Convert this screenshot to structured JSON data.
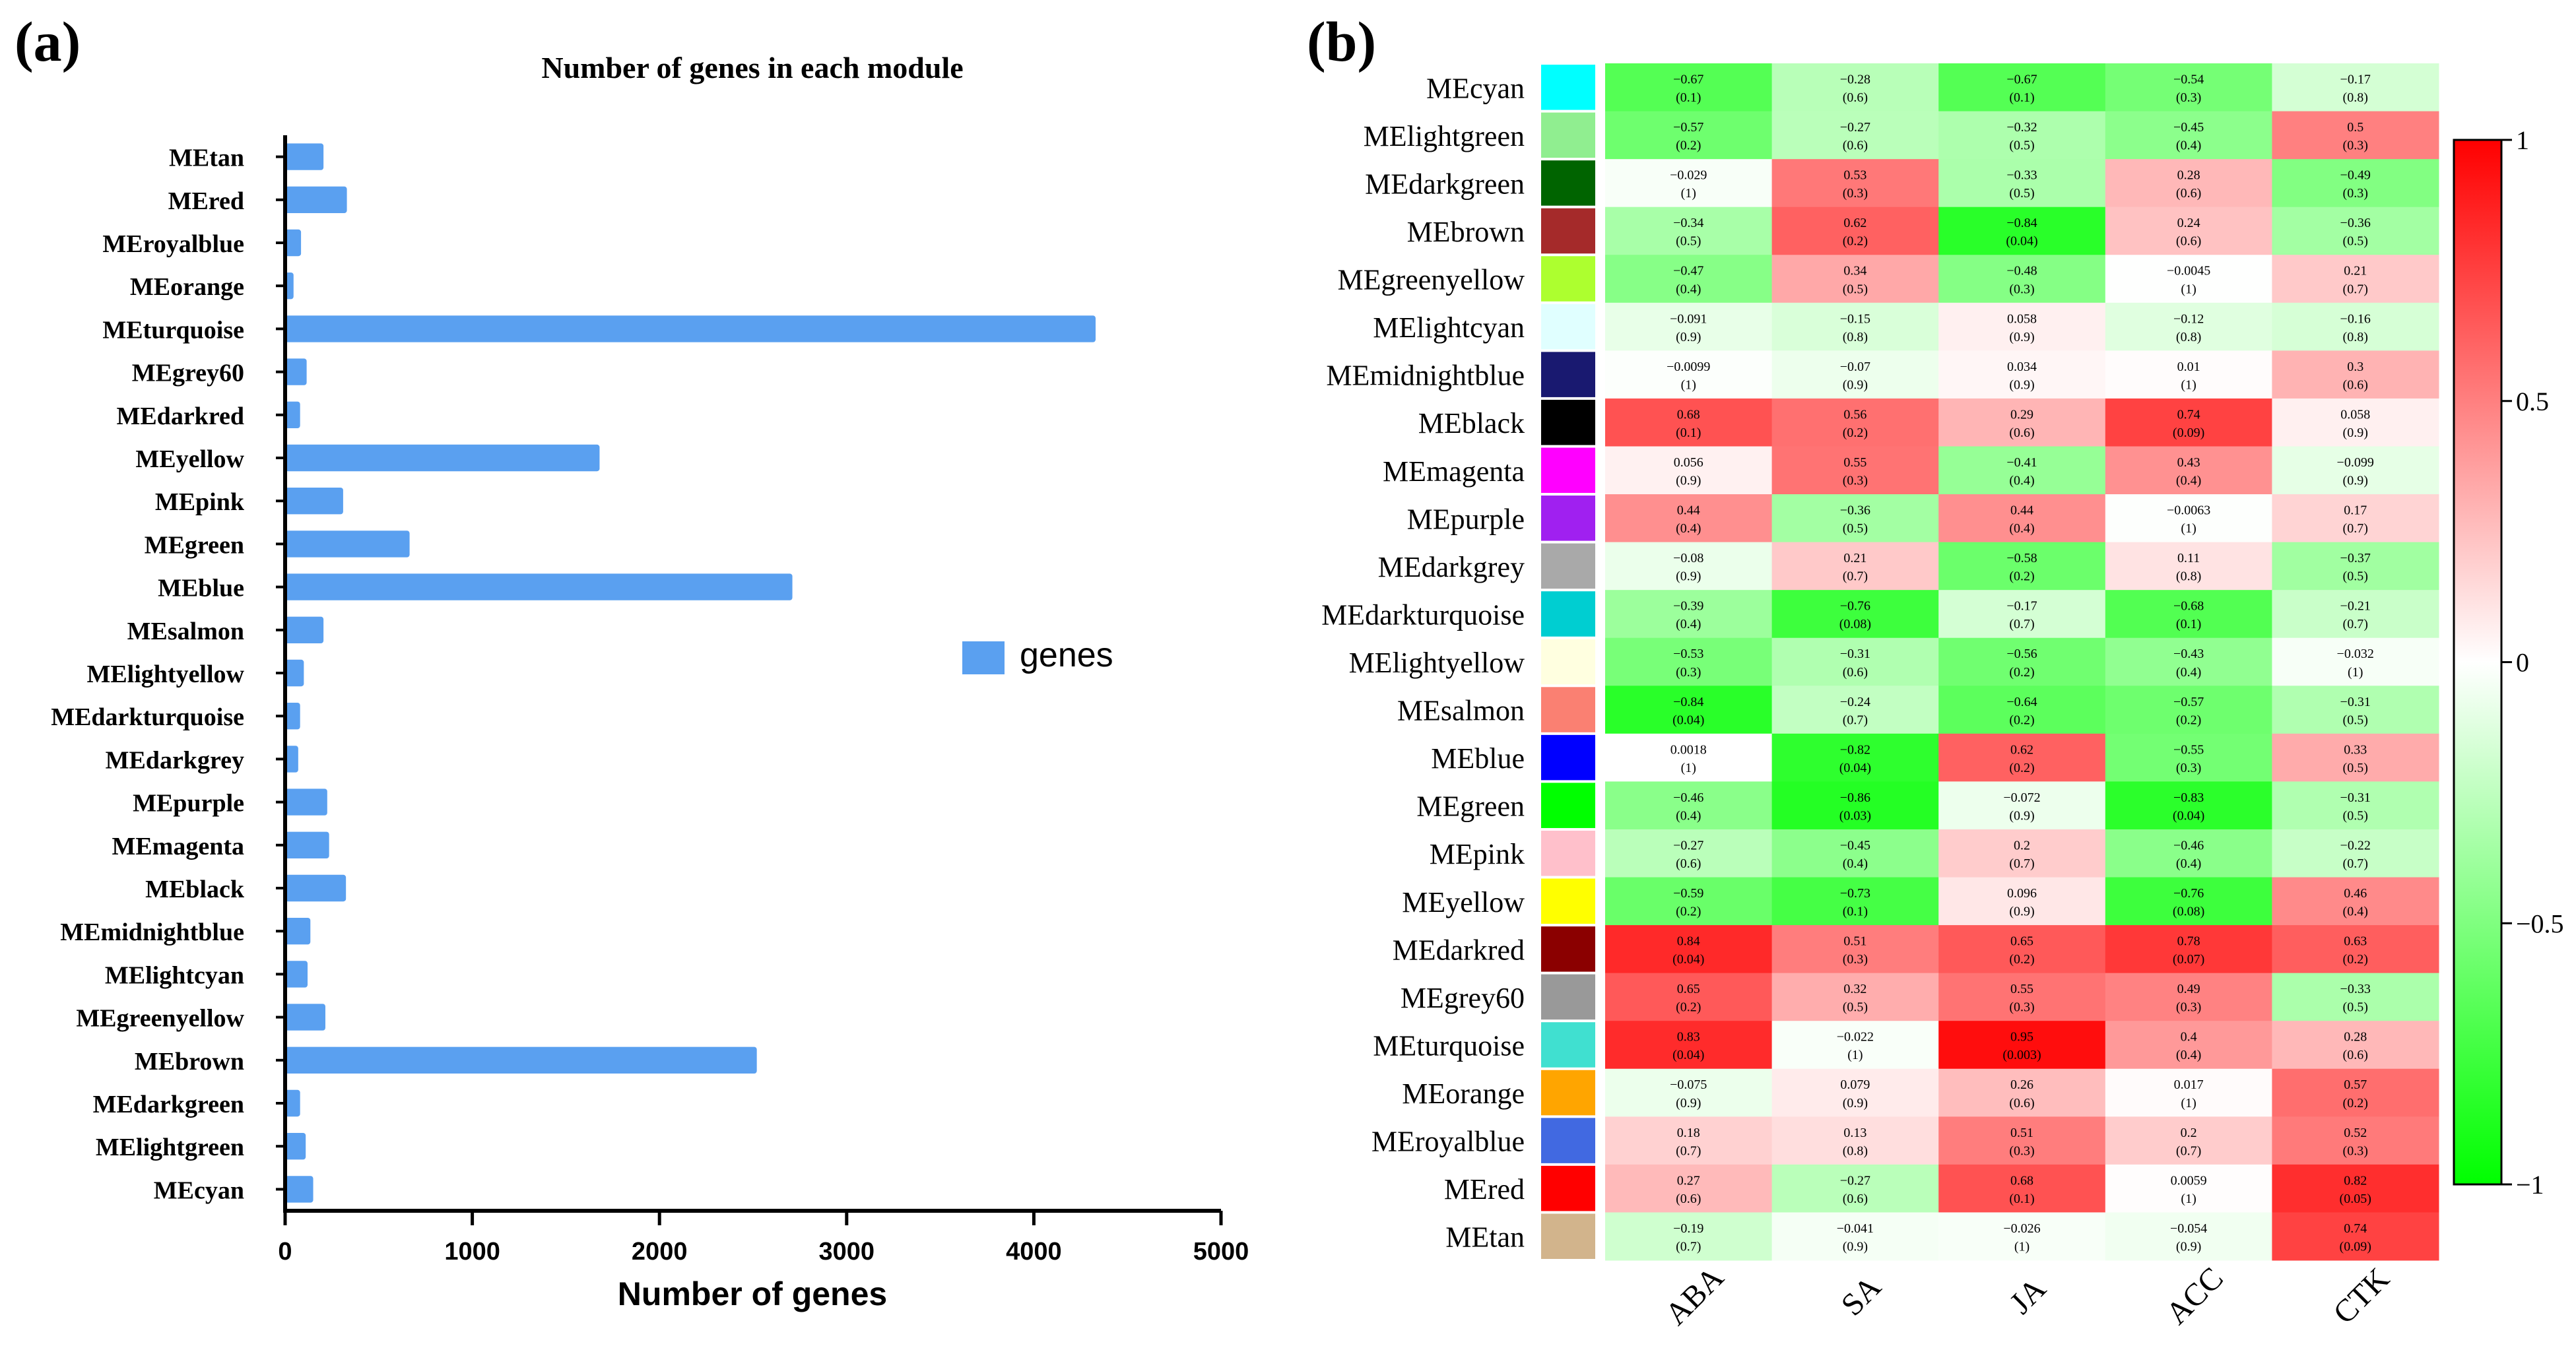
{
  "panel_a_letter": "(a)",
  "panel_b_letter": "(b)",
  "chart_data": [
    {
      "type": "bar",
      "orientation": "horizontal",
      "title": "Number of genes in each module",
      "xlabel": "Number of genes",
      "ylabel": "",
      "xlim": [
        0,
        5000
      ],
      "xticks": [
        0,
        1000,
        2000,
        3000,
        4000,
        5000
      ],
      "legend": {
        "label": "genes",
        "position": "right"
      },
      "bar_color": "#5aa0f0",
      "categories": [
        "MEtan",
        "MEred",
        "MEroyalblue",
        "MEorange",
        "MEturquoise",
        "MEgrey60",
        "MEdarkred",
        "MEyellow",
        "MEpink",
        "MEgreen",
        "MEblue",
        "MEsalmon",
        "MElightyellow",
        "MEdarkturquoise",
        "MEdarkgrey",
        "MEpurple",
        "MEmagenta",
        "MEblack",
        "MEmidnightblue",
        "MElightcyan",
        "MEgreenyellow",
        "MEbrown",
        "MEdarkgreen",
        "MElightgreen",
        "MEcyan"
      ],
      "values": [
        205,
        330,
        85,
        45,
        4330,
        115,
        80,
        1680,
        310,
        665,
        2710,
        205,
        100,
        80,
        70,
        225,
        235,
        325,
        135,
        120,
        215,
        2520,
        80,
        110,
        150
      ]
    },
    {
      "type": "heatmap",
      "columns": [
        "ABA",
        "SA",
        "JA",
        "ACC",
        "CTK"
      ],
      "rows": [
        "MEcyan",
        "MElightgreen",
        "MEdarkgreen",
        "MEbrown",
        "MEgreenyellow",
        "MElightcyan",
        "MEmidnightblue",
        "MEblack",
        "MEmagenta",
        "MEpurple",
        "MEdarkgrey",
        "MEdarkturquoise",
        "MElightyellow",
        "MEsalmon",
        "MEblue",
        "MEgreen",
        "MEpink",
        "MEyellow",
        "MEdarkred",
        "MEgrey60",
        "MEturquoise",
        "MEorange",
        "MEroyalblue",
        "MEred",
        "MEtan"
      ],
      "row_colors": [
        "#00ffff",
        "#90ee90",
        "#006400",
        "#a52a2a",
        "#adff2f",
        "#e0ffff",
        "#191970",
        "#000000",
        "#ff00ff",
        "#a020f0",
        "#a9a9a9",
        "#00ced1",
        "#ffffe0",
        "#fa8072",
        "#0000ff",
        "#00ff00",
        "#ffc0cb",
        "#ffff00",
        "#8b0000",
        "#999999",
        "#40e0d0",
        "#ffa500",
        "#4169e1",
        "#ff0000",
        "#d2b48c"
      ],
      "values": [
        [
          -0.67,
          -0.28,
          -0.67,
          -0.54,
          -0.17
        ],
        [
          -0.57,
          -0.27,
          -0.32,
          -0.45,
          0.5
        ],
        [
          -0.029,
          0.53,
          -0.33,
          0.28,
          -0.49
        ],
        [
          -0.34,
          0.62,
          -0.84,
          0.24,
          -0.36
        ],
        [
          -0.47,
          0.34,
          -0.48,
          -0.0045,
          0.21
        ],
        [
          -0.091,
          -0.15,
          0.058,
          -0.12,
          -0.16
        ],
        [
          -0.0099,
          -0.07,
          0.034,
          0.01,
          0.3
        ],
        [
          0.68,
          0.56,
          0.29,
          0.74,
          0.058
        ],
        [
          0.056,
          0.55,
          -0.41,
          0.43,
          -0.099
        ],
        [
          0.44,
          -0.36,
          0.44,
          -0.0063,
          0.17
        ],
        [
          -0.08,
          0.21,
          -0.58,
          0.11,
          -0.37
        ],
        [
          -0.39,
          -0.76,
          -0.17,
          -0.68,
          -0.21
        ],
        [
          -0.53,
          -0.31,
          -0.56,
          -0.43,
          -0.032
        ],
        [
          -0.84,
          -0.24,
          -0.64,
          -0.57,
          -0.31
        ],
        [
          0.0018,
          -0.82,
          0.62,
          -0.55,
          0.33
        ],
        [
          -0.46,
          -0.86,
          -0.072,
          -0.83,
          -0.31
        ],
        [
          -0.27,
          -0.45,
          0.2,
          -0.46,
          -0.22
        ],
        [
          -0.59,
          -0.73,
          0.096,
          -0.76,
          0.46
        ],
        [
          0.84,
          0.51,
          0.65,
          0.78,
          0.63
        ],
        [
          0.65,
          0.32,
          0.55,
          0.49,
          -0.33
        ],
        [
          0.83,
          -0.022,
          0.95,
          0.4,
          0.28
        ],
        [
          -0.075,
          0.079,
          0.26,
          0.017,
          0.57
        ],
        [
          0.18,
          0.13,
          0.51,
          0.2,
          0.52
        ],
        [
          0.27,
          -0.27,
          0.68,
          0.0059,
          0.82
        ],
        [
          -0.19,
          -0.041,
          -0.026,
          -0.054,
          0.74
        ]
      ],
      "pvalues": [
        [
          "0.1",
          "0.6",
          "0.1",
          "0.3",
          "0.8"
        ],
        [
          "0.2",
          "0.6",
          "0.5",
          "0.4",
          "0.3"
        ],
        [
          "1",
          "0.3",
          "0.5",
          "0.6",
          "0.3"
        ],
        [
          "0.5",
          "0.2",
          "0.04",
          "0.6",
          "0.5"
        ],
        [
          "0.4",
          "0.5",
          "0.3",
          "1",
          "0.7"
        ],
        [
          "0.9",
          "0.8",
          "0.9",
          "0.8",
          "0.8"
        ],
        [
          "1",
          "0.9",
          "0.9",
          "1",
          "0.6"
        ],
        [
          "0.1",
          "0.2",
          "0.6",
          "0.09",
          "0.9"
        ],
        [
          "0.9",
          "0.3",
          "0.4",
          "0.4",
          "0.9"
        ],
        [
          "0.4",
          "0.5",
          "0.4",
          "1",
          "0.7"
        ],
        [
          "0.9",
          "0.7",
          "0.2",
          "0.8",
          "0.5"
        ],
        [
          "0.4",
          "0.08",
          "0.7",
          "0.1",
          "0.7"
        ],
        [
          "0.3",
          "0.6",
          "0.2",
          "0.4",
          "1"
        ],
        [
          "0.04",
          "0.7",
          "0.2",
          "0.2",
          "0.5"
        ],
        [
          "1",
          "0.04",
          "0.2",
          "0.3",
          "0.5"
        ],
        [
          "0.4",
          "0.03",
          "0.9",
          "0.04",
          "0.5"
        ],
        [
          "0.6",
          "0.4",
          "0.7",
          "0.4",
          "0.7"
        ],
        [
          "0.2",
          "0.1",
          "0.9",
          "0.08",
          "0.4"
        ],
        [
          "0.04",
          "0.3",
          "0.2",
          "0.07",
          "0.2"
        ],
        [
          "0.2",
          "0.5",
          "0.3",
          "0.3",
          "0.5"
        ],
        [
          "0.04",
          "1",
          "0.003",
          "0.4",
          "0.6"
        ],
        [
          "0.9",
          "0.9",
          "0.6",
          "1",
          "0.2"
        ],
        [
          "0.7",
          "0.8",
          "0.3",
          "0.7",
          "0.3"
        ],
        [
          "0.6",
          "0.6",
          "0.1",
          "1",
          "0.05"
        ],
        [
          "0.7",
          "0.9",
          "1",
          "0.9",
          "0.09"
        ]
      ],
      "colorbar": {
        "range": [
          -1,
          1
        ],
        "ticks": [
          "1",
          "0.5",
          "0",
          "−0.5",
          "−1"
        ],
        "low_color": "#00ff00",
        "mid_color": "#ffffff",
        "high_color": "#ff0000"
      }
    }
  ]
}
